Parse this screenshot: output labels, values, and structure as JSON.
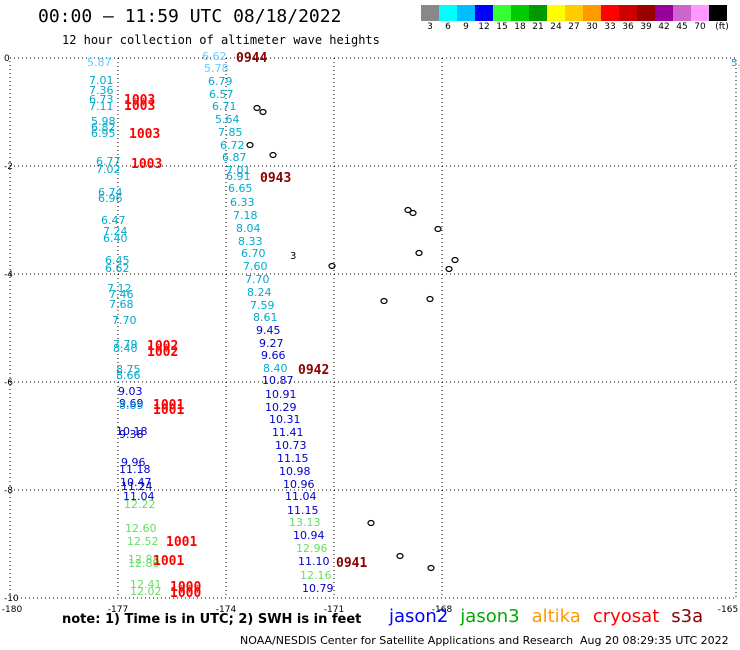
{
  "header": {
    "title": "00:00 — 11:59 UTC 08/18/2022",
    "subtitle": "12 hour collection of altimeter wave heights"
  },
  "legend": {
    "colors": [
      "#888888",
      "#00ffff",
      "#00bfff",
      "#0000ff",
      "#33ff33",
      "#00cc00",
      "#009900",
      "#ffff00",
      "#ffcc00",
      "#ff9900",
      "#ff0000",
      "#cc0000",
      "#990000",
      "#990099",
      "#cc66cc",
      "#ff99ff",
      "#000000"
    ],
    "ticks": [
      "3",
      "6",
      "9",
      "12",
      "15",
      "18",
      "21",
      "24",
      "27",
      "30",
      "33",
      "36",
      "39",
      "42",
      "45",
      "70",
      "(ft)"
    ]
  },
  "map_axes": {
    "lat_labels": [
      "0",
      "-2",
      "-4",
      "-6",
      "-8",
      "-10"
    ],
    "lon_labels": [
      "-180",
      "-177",
      "-174",
      "-171",
      "-168",
      "-165"
    ]
  },
  "labels": [
    {
      "t": "5.87",
      "c": "#66ccff"
    },
    {
      "t": "6.62",
      "c": "#66ccff"
    },
    {
      "t": "5.78",
      "c": "#66ccff"
    },
    {
      "t": "6.79",
      "c": "#00aacc"
    },
    {
      "t": "7.01",
      "c": "#00aacc"
    },
    {
      "t": "7.36",
      "c": "#00aacc"
    },
    {
      "t": "6.73",
      "c": "#00aacc"
    },
    {
      "t": "7.11",
      "c": "#00aacc"
    },
    {
      "t": "6.57",
      "c": "#00aacc"
    },
    {
      "t": "6.71",
      "c": "#00aacc"
    },
    {
      "t": "5.98",
      "c": "#00aacc"
    },
    {
      "t": "5.64",
      "c": "#00aacc"
    },
    {
      "t": "6.82",
      "c": "#00aacc"
    },
    {
      "t": "6.95",
      "c": "#00aacc"
    },
    {
      "t": "7.85",
      "c": "#00aacc"
    },
    {
      "t": "6.72",
      "c": "#00aacc"
    },
    {
      "t": "6.87",
      "c": "#00aacc"
    },
    {
      "t": "6.77",
      "c": "#00aacc"
    },
    {
      "t": "7.02",
      "c": "#00aacc"
    },
    {
      "t": "7.01",
      "c": "#00aacc"
    },
    {
      "t": "6.91",
      "c": "#00aacc"
    },
    {
      "t": "6.65",
      "c": "#00aacc"
    },
    {
      "t": "6.74",
      "c": "#00aacc"
    },
    {
      "t": "6.96",
      "c": "#00aacc"
    },
    {
      "t": "6.33",
      "c": "#00aacc"
    },
    {
      "t": "7.18",
      "c": "#00aacc"
    },
    {
      "t": "6.47",
      "c": "#00aacc"
    },
    {
      "t": "8.04",
      "c": "#00aacc"
    },
    {
      "t": "7.24",
      "c": "#00aacc"
    },
    {
      "t": "6.40",
      "c": "#00aacc"
    },
    {
      "t": "8.33",
      "c": "#00aacc"
    },
    {
      "t": "6.70",
      "c": "#00aacc"
    },
    {
      "t": "6.45",
      "c": "#00aacc"
    },
    {
      "t": "6.62",
      "c": "#00aacc"
    },
    {
      "t": "7.60",
      "c": "#00aacc"
    },
    {
      "t": "7.70",
      "c": "#00aacc"
    },
    {
      "t": "7.12",
      "c": "#00aacc"
    },
    {
      "t": "8.24",
      "c": "#00aacc"
    },
    {
      "t": "7.46",
      "c": "#00aacc"
    },
    {
      "t": "7.68",
      "c": "#00aacc"
    },
    {
      "t": "7.59",
      "c": "#00aacc"
    },
    {
      "t": "8.61",
      "c": "#00aacc"
    },
    {
      "t": "7.70",
      "c": "#00aacc"
    },
    {
      "t": "9.45",
      "c": "#0000cc"
    },
    {
      "t": "7.79",
      "c": "#00aacc"
    },
    {
      "t": "8.40",
      "c": "#00aacc"
    },
    {
      "t": "9.27",
      "c": "#0000cc"
    },
    {
      "t": "9.66",
      "c": "#0000cc"
    },
    {
      "t": "8.75",
      "c": "#00aacc"
    },
    {
      "t": "8.40",
      "c": "#00aacc"
    },
    {
      "t": "8.66",
      "c": "#00aacc"
    },
    {
      "t": "10.87",
      "c": "#0000cc"
    },
    {
      "t": "9.03",
      "c": "#0000cc"
    },
    {
      "t": "10.91",
      "c": "#0000cc"
    },
    {
      "t": "9.69",
      "c": "#0000cc"
    },
    {
      "t": "8.89",
      "c": "#00aacc"
    },
    {
      "t": "10.29",
      "c": "#0000cc"
    },
    {
      "t": "10.31",
      "c": "#0000cc"
    },
    {
      "t": "10.18",
      "c": "#0000cc"
    },
    {
      "t": "9.38",
      "c": "#0000cc"
    },
    {
      "t": "11.41",
      "c": "#0000cc"
    },
    {
      "t": "10.73",
      "c": "#0000cc"
    },
    {
      "t": "9.96",
      "c": "#0000cc"
    },
    {
      "t": "11.15",
      "c": "#0000cc"
    },
    {
      "t": "11.18",
      "c": "#0000cc"
    },
    {
      "t": "10.98",
      "c": "#0000cc"
    },
    {
      "t": "10.47",
      "c": "#0000cc"
    },
    {
      "t": "11.24",
      "c": "#0000cc"
    },
    {
      "t": "10.96",
      "c": "#0000cc"
    },
    {
      "t": "11.04",
      "c": "#0000cc"
    },
    {
      "t": "11.04",
      "c": "#0000cc"
    },
    {
      "t": "12.22",
      "c": "#66dd66"
    },
    {
      "t": "11.15",
      "c": "#0000cc"
    },
    {
      "t": "13.13",
      "c": "#66dd66"
    },
    {
      "t": "12.60",
      "c": "#66dd66"
    },
    {
      "t": "10.94",
      "c": "#0000cc"
    },
    {
      "t": "12.52",
      "c": "#66dd66"
    },
    {
      "t": "12.96",
      "c": "#66dd66"
    },
    {
      "t": "12.88",
      "c": "#66dd66"
    },
    {
      "t": "12.80",
      "c": "#66dd66"
    },
    {
      "t": "11.10",
      "c": "#0000cc"
    },
    {
      "t": "12.16",
      "c": "#66dd66"
    },
    {
      "t": "12.41",
      "c": "#66dd66"
    },
    {
      "t": "10.79",
      "c": "#0000cc"
    },
    {
      "t": "12.02",
      "c": "#66dd66"
    }
  ],
  "stations": [
    {
      "t": "0944",
      "c": "#880000"
    },
    {
      "t": "1003",
      "c": "#ff0000"
    },
    {
      "t": "1003",
      "c": "#ff0000"
    },
    {
      "t": "1003",
      "c": "#ff0000"
    },
    {
      "t": "1003",
      "c": "#ff0000"
    },
    {
      "t": "0943",
      "c": "#880000"
    },
    {
      "t": "1002",
      "c": "#ff0000"
    },
    {
      "t": "1002",
      "c": "#ff0000"
    },
    {
      "t": "0942",
      "c": "#880000"
    },
    {
      "t": "1001",
      "c": "#ff0000"
    },
    {
      "t": "1001",
      "c": "#ff0000"
    },
    {
      "t": "1001",
      "c": "#ff0000"
    },
    {
      "t": "1001",
      "c": "#ff0000"
    },
    {
      "t": "0941",
      "c": "#880000"
    },
    {
      "t": "1000",
      "c": "#ff0000"
    },
    {
      "t": "1000",
      "c": "#ff0000"
    }
  ],
  "edge_labels": [
    {
      "t": "3",
      "c": "#000000"
    },
    {
      "t": "5.",
      "c": "#00aacc"
    }
  ],
  "footer": {
    "note": "note:  1) Time is in UTC;  2) SWH is in feet",
    "missions": [
      {
        "name": "jason2",
        "color": "#0000ff"
      },
      {
        "name": "jason3",
        "color": "#00aa00"
      },
      {
        "name": "altika",
        "color": "#ff9900"
      },
      {
        "name": "cryosat",
        "color": "#ff0000"
      },
      {
        "name": "s3a",
        "color": "#880000"
      }
    ],
    "credit": "NOAA/NESDIS Center for Satellite Applications and Research",
    "timestamp": "Aug 20 08:29:35 UTC 2022"
  }
}
